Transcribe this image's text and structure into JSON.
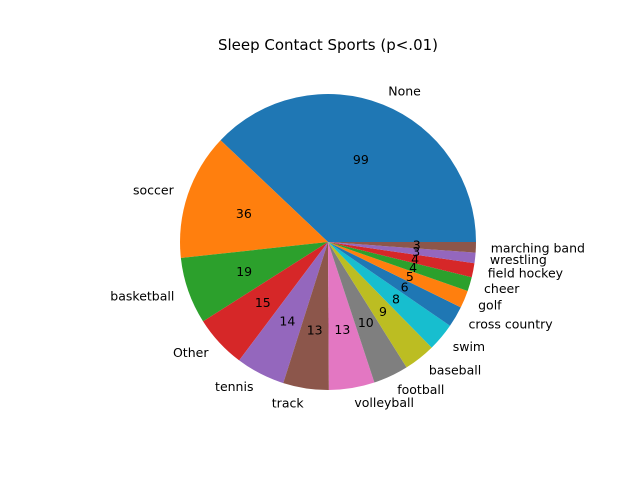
{
  "chart_data": {
    "type": "pie",
    "title": "Sleep Contact Sports (p<.01)",
    "categories": [
      "None",
      "soccer",
      "basketball",
      "Other",
      "tennis",
      "track",
      "volleyball",
      "football",
      "baseball",
      "swim",
      "cross country",
      "golf",
      "cheer",
      "field hockey",
      "wrestling",
      "marching band"
    ],
    "values": [
      99,
      36,
      19,
      15,
      14,
      13,
      13,
      10,
      9,
      8,
      6,
      5,
      4,
      4,
      3,
      3
    ],
    "value_labels": [
      "99",
      "36",
      "19",
      "15",
      "14",
      "13",
      "13",
      "10",
      "9",
      "8",
      "6",
      "5",
      "4",
      "4",
      "3",
      "3"
    ],
    "colors": [
      "#1f77b4",
      "#ff7f0e",
      "#2ca02c",
      "#d62728",
      "#9467bd",
      "#8c564b",
      "#e377c2",
      "#7f7f7f",
      "#bcbd22",
      "#17becf",
      "#1f77b4",
      "#ff7f0e",
      "#2ca02c",
      "#d62728",
      "#9467bd",
      "#8c564b"
    ],
    "start_angle_deg": 0,
    "direction": "counterclockwise",
    "legend": "none"
  }
}
